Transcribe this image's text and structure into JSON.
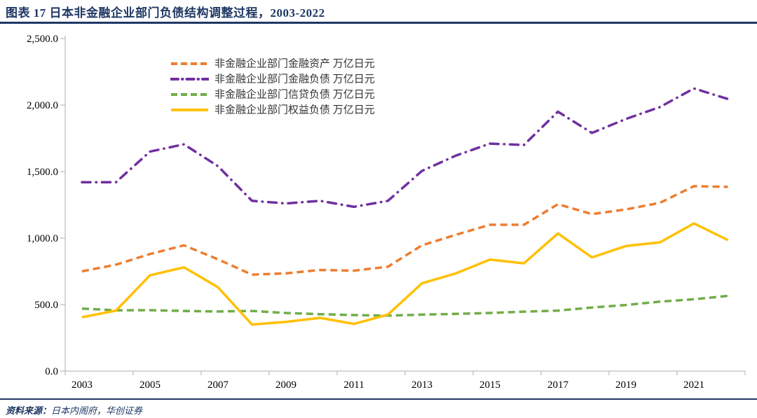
{
  "header": {
    "title": "图表 17 日本非金融企业部门负债结构调整过程，2003-2022"
  },
  "footer": {
    "source_prefix": "资料来源：",
    "source_text": "日本内阁府，华创证券"
  },
  "colors": {
    "navy": "#1F3864",
    "axis_line": "#BFBFBF",
    "tick_text": "#000000",
    "orange": "#ED7D31",
    "purple": "#7030A0",
    "green": "#70AD47",
    "yellow": "#FFC000"
  },
  "chart_data": {
    "type": "line",
    "title": "日本非金融企业部门负债结构调整过程，2003-2022",
    "xlabel": "",
    "ylabel": "万亿日元",
    "ylim": [
      0,
      2500
    ],
    "ytick_step": 500,
    "y_tick_values": [
      0,
      500,
      1000,
      1500,
      2000,
      2500
    ],
    "y_tick_labels": [
      "0.0",
      "500.0",
      "1,000.0",
      "1,500.0",
      "2,000.0",
      "2,500.0"
    ],
    "x": [
      2003,
      2004,
      2005,
      2006,
      2007,
      2008,
      2009,
      2010,
      2011,
      2012,
      2013,
      2014,
      2015,
      2016,
      2017,
      2018,
      2019,
      2020,
      2021,
      2022
    ],
    "x_tick_labels": [
      "2003",
      "2005",
      "2007",
      "2009",
      "2011",
      "2013",
      "2015",
      "2017",
      "2019",
      "2021"
    ],
    "grid": false,
    "legend_position": "top-center",
    "series": [
      {
        "key": "assets",
        "name": "非金融企业部门金融资产 万亿日元",
        "color": "#ED7D31",
        "dash": "dashed",
        "values": [
          750,
          800,
          880,
          945,
          840,
          725,
          735,
          760,
          755,
          785,
          945,
          1025,
          1100,
          1100,
          1255,
          1180,
          1215,
          1265,
          1390,
          1385
        ]
      },
      {
        "key": "liabilities",
        "name": "非金融企业部门金融负债 万亿日元",
        "color": "#7030A0",
        "dash": "dashdot",
        "values": [
          1420,
          1420,
          1650,
          1705,
          1540,
          1280,
          1260,
          1280,
          1235,
          1280,
          1505,
          1620,
          1710,
          1700,
          1950,
          1790,
          1895,
          1985,
          2125,
          2045
        ]
      },
      {
        "key": "credit",
        "name": "非金融企业部门信贷负债 万亿日元",
        "color": "#70AD47",
        "dash": "dashed",
        "values": [
          470,
          457,
          458,
          452,
          448,
          452,
          437,
          428,
          421,
          417,
          424,
          430,
          437,
          447,
          455,
          478,
          497,
          522,
          540,
          565
        ]
      },
      {
        "key": "equity",
        "name": "非金融企业部门权益负债 万亿日元",
        "color": "#FFC000",
        "dash": "solid",
        "values": [
          405,
          455,
          720,
          780,
          630,
          350,
          370,
          400,
          355,
          425,
          660,
          735,
          838,
          810,
          1035,
          855,
          940,
          968,
          1110,
          985
        ]
      }
    ]
  }
}
